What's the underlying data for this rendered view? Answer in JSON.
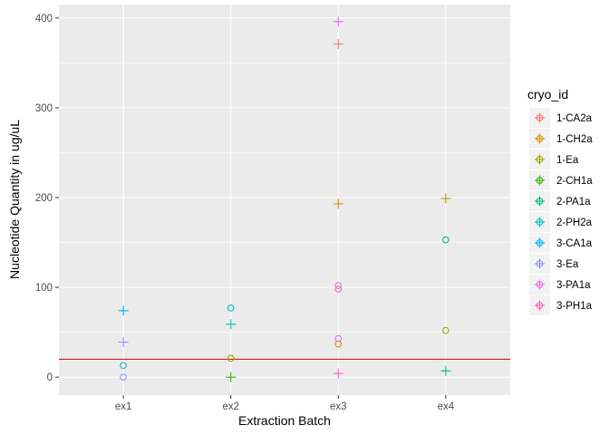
{
  "chart_data": {
    "type": "scatter",
    "title": "",
    "xlabel": "Extraction Batch",
    "ylabel": "Nucleotide Quantity in ug/uL",
    "categories": [
      "ex1",
      "ex2",
      "ex3",
      "ex4"
    ],
    "ylim": [
      -20,
      415
    ],
    "yticks": [
      0,
      100,
      200,
      300,
      400
    ],
    "grid": true,
    "background": "#EBEBEB",
    "legend": {
      "title": "cryo_id",
      "position": "right"
    },
    "reference_line": {
      "y": 20,
      "color": "#CC0000"
    },
    "series": [
      {
        "name": "1-CA2a",
        "color": "#F8766D",
        "points": [
          {
            "x": "ex3",
            "y": 371,
            "shape": "plus"
          }
        ]
      },
      {
        "name": "1-CH2a",
        "color": "#D89000",
        "points": [
          {
            "x": "ex3",
            "y": 193,
            "shape": "plus"
          },
          {
            "x": "ex3",
            "y": 37,
            "shape": "circle"
          }
        ]
      },
      {
        "name": "1-Ea",
        "color": "#A3A500",
        "points": [
          {
            "x": "ex2",
            "y": 21,
            "shape": "circle"
          },
          {
            "x": "ex4",
            "y": 199,
            "shape": "plus"
          },
          {
            "x": "ex4",
            "y": 52,
            "shape": "circle"
          }
        ]
      },
      {
        "name": "2-CH1a",
        "color": "#39B600",
        "points": [
          {
            "x": "ex2",
            "y": 0,
            "shape": "plus"
          }
        ]
      },
      {
        "name": "2-PA1a",
        "color": "#00BF7D",
        "points": [
          {
            "x": "ex4",
            "y": 7,
            "shape": "plus"
          },
          {
            "x": "ex4",
            "y": 153,
            "shape": "circle"
          }
        ]
      },
      {
        "name": "2-PH2a",
        "color": "#00BFC4",
        "points": [
          {
            "x": "ex2",
            "y": 59,
            "shape": "plus"
          },
          {
            "x": "ex2",
            "y": 77,
            "shape": "circle"
          },
          {
            "x": "ex1",
            "y": 13,
            "shape": "circle"
          }
        ]
      },
      {
        "name": "3-CA1a",
        "color": "#00B0F6",
        "points": [
          {
            "x": "ex1",
            "y": 74,
            "shape": "plus"
          }
        ]
      },
      {
        "name": "3-Ea",
        "color": "#9590FF",
        "points": [
          {
            "x": "ex1",
            "y": 39,
            "shape": "plus"
          },
          {
            "x": "ex1",
            "y": 0,
            "shape": "circle"
          }
        ]
      },
      {
        "name": "3-PA1a",
        "color": "#E76BF3",
        "points": [
          {
            "x": "ex3",
            "y": 396,
            "shape": "plus"
          },
          {
            "x": "ex3",
            "y": 102,
            "shape": "circle"
          },
          {
            "x": "ex3",
            "y": 43,
            "shape": "circle"
          }
        ]
      },
      {
        "name": "3-PH1a",
        "color": "#FF62BC",
        "points": [
          {
            "x": "ex3",
            "y": 4,
            "shape": "plus"
          },
          {
            "x": "ex3",
            "y": 98,
            "shape": "circle"
          }
        ]
      }
    ]
  }
}
